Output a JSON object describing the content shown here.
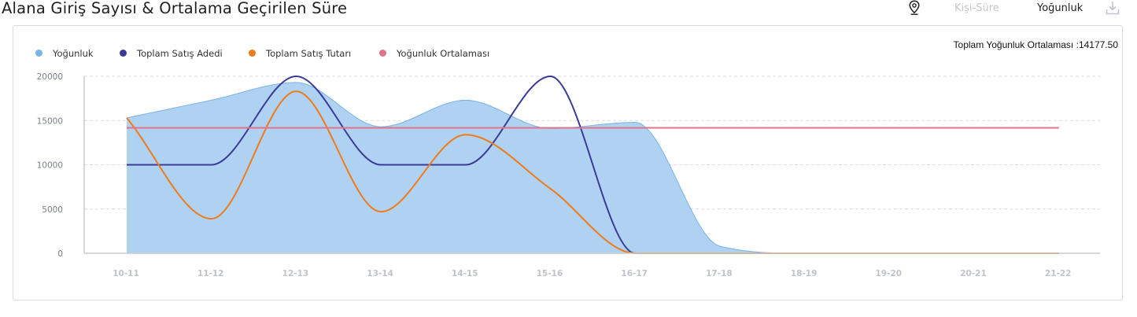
{
  "title": "Alana Giriş Sayısı & Ortalama Geçirilen Süre",
  "toolbar": {
    "pin_icon": "map-pin-icon",
    "tab_kisi_sure": "Kişi-Süre",
    "tab_yogunluk": "Yoğunluk",
    "active_tab": "Yoğunluk",
    "download_icon": "download-icon"
  },
  "average_text": "Toplam Yoğunluk Ortalaması :14177.50",
  "colors": {
    "yogunluk": "#79b3e8",
    "yogunluk_fill": "#afd2f3",
    "satis_adedi": "#3c3a98",
    "satis_tutari": "#f07a1a",
    "ortalama": "#e0738b",
    "grid": "#d9dce0",
    "axis": "#c8ccd2"
  },
  "chart_data": {
    "type": "line",
    "categories": [
      "10-11",
      "11-12",
      "12-13",
      "13-14",
      "14-15",
      "15-16",
      "16-17",
      "17-18",
      "18-19",
      "19-20",
      "20-21",
      "21-22"
    ],
    "ylim": [
      0,
      20000
    ],
    "yticks": [
      0,
      5000,
      10000,
      15000,
      20000
    ],
    "grid": true,
    "legend_position": "top-left",
    "series": [
      {
        "name": "Yoğunluk",
        "kind": "area",
        "values": [
          15300,
          17300,
          19300,
          14300,
          17300,
          14100,
          14800,
          800,
          0,
          0,
          0,
          0
        ]
      },
      {
        "name": "Toplam Satış Adedi",
        "kind": "line",
        "values": [
          10000,
          10000,
          20000,
          10000,
          10000,
          20000,
          0,
          0,
          0,
          0,
          0,
          0
        ]
      },
      {
        "name": "Toplam Satış Tutarı",
        "kind": "line",
        "values": [
          15300,
          3900,
          18300,
          4700,
          13400,
          7300,
          0,
          0,
          0,
          0,
          0,
          0
        ]
      },
      {
        "name": "Yoğunluk Ortalaması",
        "kind": "line",
        "values": [
          14177.5,
          14177.5,
          14177.5,
          14177.5,
          14177.5,
          14177.5,
          14177.5,
          14177.5,
          14177.5,
          14177.5,
          14177.5,
          14177.5
        ]
      }
    ]
  }
}
